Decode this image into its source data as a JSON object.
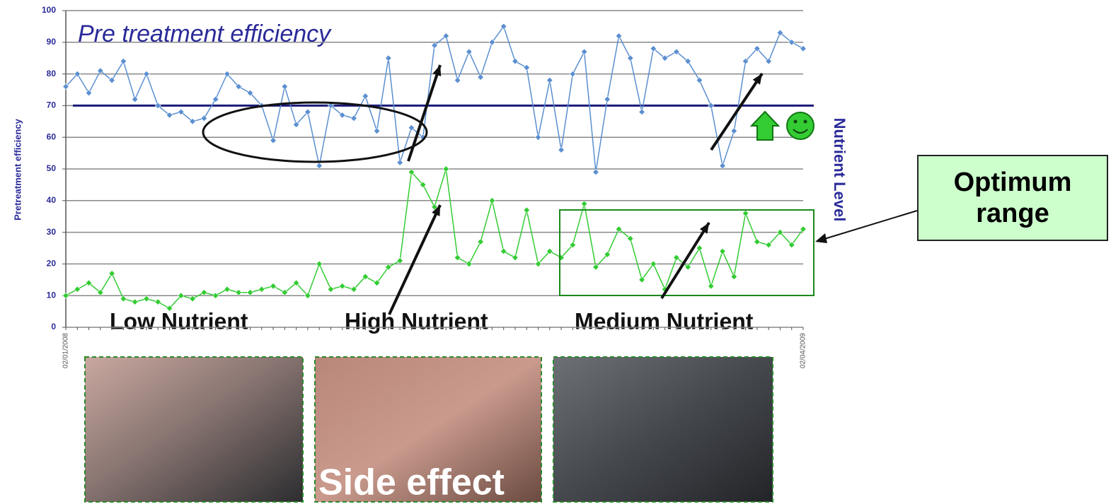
{
  "chart_data": {
    "type": "line",
    "y_label": "Pretreatment efficiency",
    "y2_label": "Nutrient Level",
    "annotations": {
      "efficiency": "Pre treatment efficiency",
      "low": "Low Nutrient",
      "high": "High Nutrient",
      "medium": "Medium Nutrient",
      "optimum": "Optimum range",
      "side_effect": "Side effect"
    },
    "categories": [
      "02/01/2008",
      null,
      null,
      null,
      null,
      null,
      null,
      null,
      null,
      null,
      null,
      null,
      null,
      null,
      null,
      null,
      null,
      null,
      null,
      null,
      null,
      null,
      null,
      null,
      null,
      null,
      null,
      null,
      null,
      null,
      null,
      null,
      null,
      null,
      null,
      null,
      null,
      null,
      null,
      null,
      null,
      null,
      null,
      null,
      null,
      null,
      null,
      null,
      null,
      null,
      null,
      null,
      null,
      null,
      null,
      null,
      null,
      null,
      null,
      null,
      null,
      null,
      null,
      null,
      "02/04/2009"
    ],
    "series": [
      {
        "name": "Pretreatment efficiency",
        "color": "#5b8fd0",
        "values": [
          76,
          80,
          74,
          81,
          78,
          84,
          72,
          80,
          70,
          67,
          68,
          65,
          66,
          72,
          80,
          76,
          74,
          70,
          59,
          76,
          64,
          68,
          51,
          70,
          67,
          66,
          73,
          62,
          85,
          52,
          63,
          60,
          89,
          92,
          78,
          87,
          79,
          90,
          95,
          84,
          82,
          60,
          78,
          56,
          80,
          87,
          49,
          72,
          92,
          85,
          68,
          88,
          85,
          87,
          84,
          78,
          70,
          51,
          62,
          84,
          88,
          84,
          93,
          90,
          88
        ]
      },
      {
        "name": "Nutrient Level",
        "color": "#33cc33",
        "values": [
          10,
          12,
          14,
          11,
          17,
          9,
          8,
          9,
          8,
          6,
          10,
          9,
          11,
          10,
          12,
          11,
          11,
          12,
          13,
          11,
          14,
          10,
          20,
          12,
          13,
          12,
          16,
          14,
          19,
          21,
          49,
          45,
          38,
          50,
          22,
          20,
          27,
          40,
          24,
          22,
          37,
          20,
          24,
          22,
          26,
          39,
          19,
          23,
          31,
          28,
          15,
          20,
          12,
          22,
          19,
          25,
          13,
          24,
          16,
          36,
          27,
          26,
          30,
          26,
          31
        ]
      }
    ],
    "reference_line": 70,
    "ylim": [
      0,
      100
    ],
    "yticks": [
      0,
      10,
      20,
      30,
      40,
      50,
      60,
      70,
      80,
      90,
      100
    ],
    "grid": true
  }
}
